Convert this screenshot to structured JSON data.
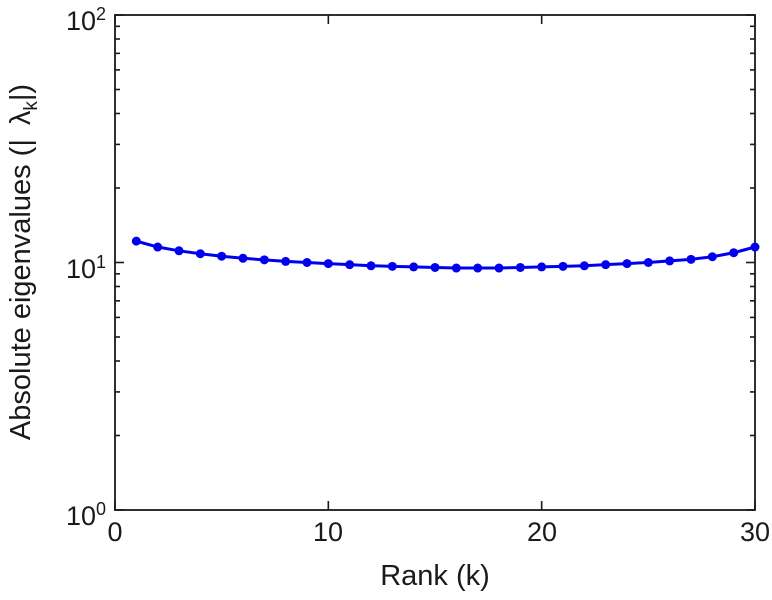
{
  "figure": {
    "background": "#ffffff"
  },
  "style": {
    "axis_color": "#1a1a1a",
    "line_color": "#0000ee",
    "marker_color": "#0000ee"
  },
  "chart_data": {
    "type": "line",
    "title": "",
    "xlabel": "Rank (k)",
    "ylabel_parts": {
      "prefix": "Absolute eigenvalues (|",
      "lambda": "λ",
      "subscript": "k",
      "suffix": "|)"
    },
    "yscale": "log",
    "xlim": [
      0,
      30
    ],
    "ylim": [
      1,
      100
    ],
    "grid": false,
    "legend": null,
    "x": [
      1,
      2,
      3,
      4,
      5,
      6,
      7,
      8,
      9,
      10,
      11,
      12,
      13,
      14,
      15,
      16,
      17,
      18,
      19,
      20,
      21,
      22,
      23,
      24,
      25,
      26,
      27,
      28,
      29,
      30
    ],
    "series": [
      {
        "name": "absolute-eigenvalues",
        "marker": "dot",
        "values": [
          12.2,
          11.55,
          11.15,
          10.85,
          10.6,
          10.4,
          10.25,
          10.1,
          10.0,
          9.9,
          9.8,
          9.7,
          9.65,
          9.6,
          9.55,
          9.5,
          9.5,
          9.5,
          9.55,
          9.6,
          9.65,
          9.7,
          9.8,
          9.9,
          10.0,
          10.15,
          10.3,
          10.55,
          10.95,
          11.55
        ]
      }
    ],
    "x_ticks": [
      {
        "value": 0,
        "label": "0"
      },
      {
        "value": 10,
        "label": "10"
      },
      {
        "value": 20,
        "label": "20"
      },
      {
        "value": 30,
        "label": "30"
      }
    ],
    "y_ticks": [
      {
        "value": 1,
        "base": "10",
        "exp": "0"
      },
      {
        "value": 10,
        "base": "10",
        "exp": "1"
      },
      {
        "value": 100,
        "base": "10",
        "exp": "2"
      }
    ],
    "y_minor_ticks": [
      2,
      3,
      4,
      5,
      6,
      7,
      8,
      9,
      20,
      30,
      40,
      50,
      60,
      70,
      80,
      90
    ]
  }
}
